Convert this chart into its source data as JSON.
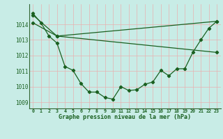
{
  "title": "Graphe pression niveau de la mer (hPa)",
  "bg_color": "#c8ece6",
  "grid_color": "#e8b0b0",
  "line_color": "#1a6020",
  "border_color": "#336633",
  "xlim": [
    -0.5,
    23.5
  ],
  "ylim": [
    1008.6,
    1015.3
  ],
  "yticks": [
    1009,
    1010,
    1011,
    1012,
    1013,
    1014
  ],
  "xticks": [
    0,
    1,
    2,
    3,
    4,
    5,
    6,
    7,
    8,
    9,
    10,
    11,
    12,
    13,
    14,
    15,
    16,
    17,
    18,
    19,
    20,
    21,
    22,
    23
  ],
  "line1_x": [
    0,
    1,
    2,
    3,
    4,
    5,
    6,
    7,
    8,
    9,
    10,
    11,
    12,
    13,
    14,
    15,
    16,
    17,
    18,
    19,
    20,
    21,
    22,
    23
  ],
  "line1_y": [
    1014.7,
    1014.1,
    1013.25,
    1012.8,
    1011.3,
    1011.05,
    1010.2,
    1009.65,
    1009.65,
    1009.3,
    1009.2,
    1010.0,
    1009.75,
    1009.8,
    1010.15,
    1010.3,
    1011.05,
    1010.7,
    1011.15,
    1011.15,
    1012.2,
    1013.0,
    1013.75,
    1014.2
  ],
  "line2_x": [
    0,
    3,
    23
  ],
  "line2_y": [
    1014.6,
    1013.25,
    1012.2
  ],
  "line3_x": [
    0,
    3,
    23
  ],
  "line3_y": [
    1014.1,
    1013.25,
    1014.2
  ],
  "marker": "D",
  "markersize": 2.2,
  "linewidth": 0.9
}
